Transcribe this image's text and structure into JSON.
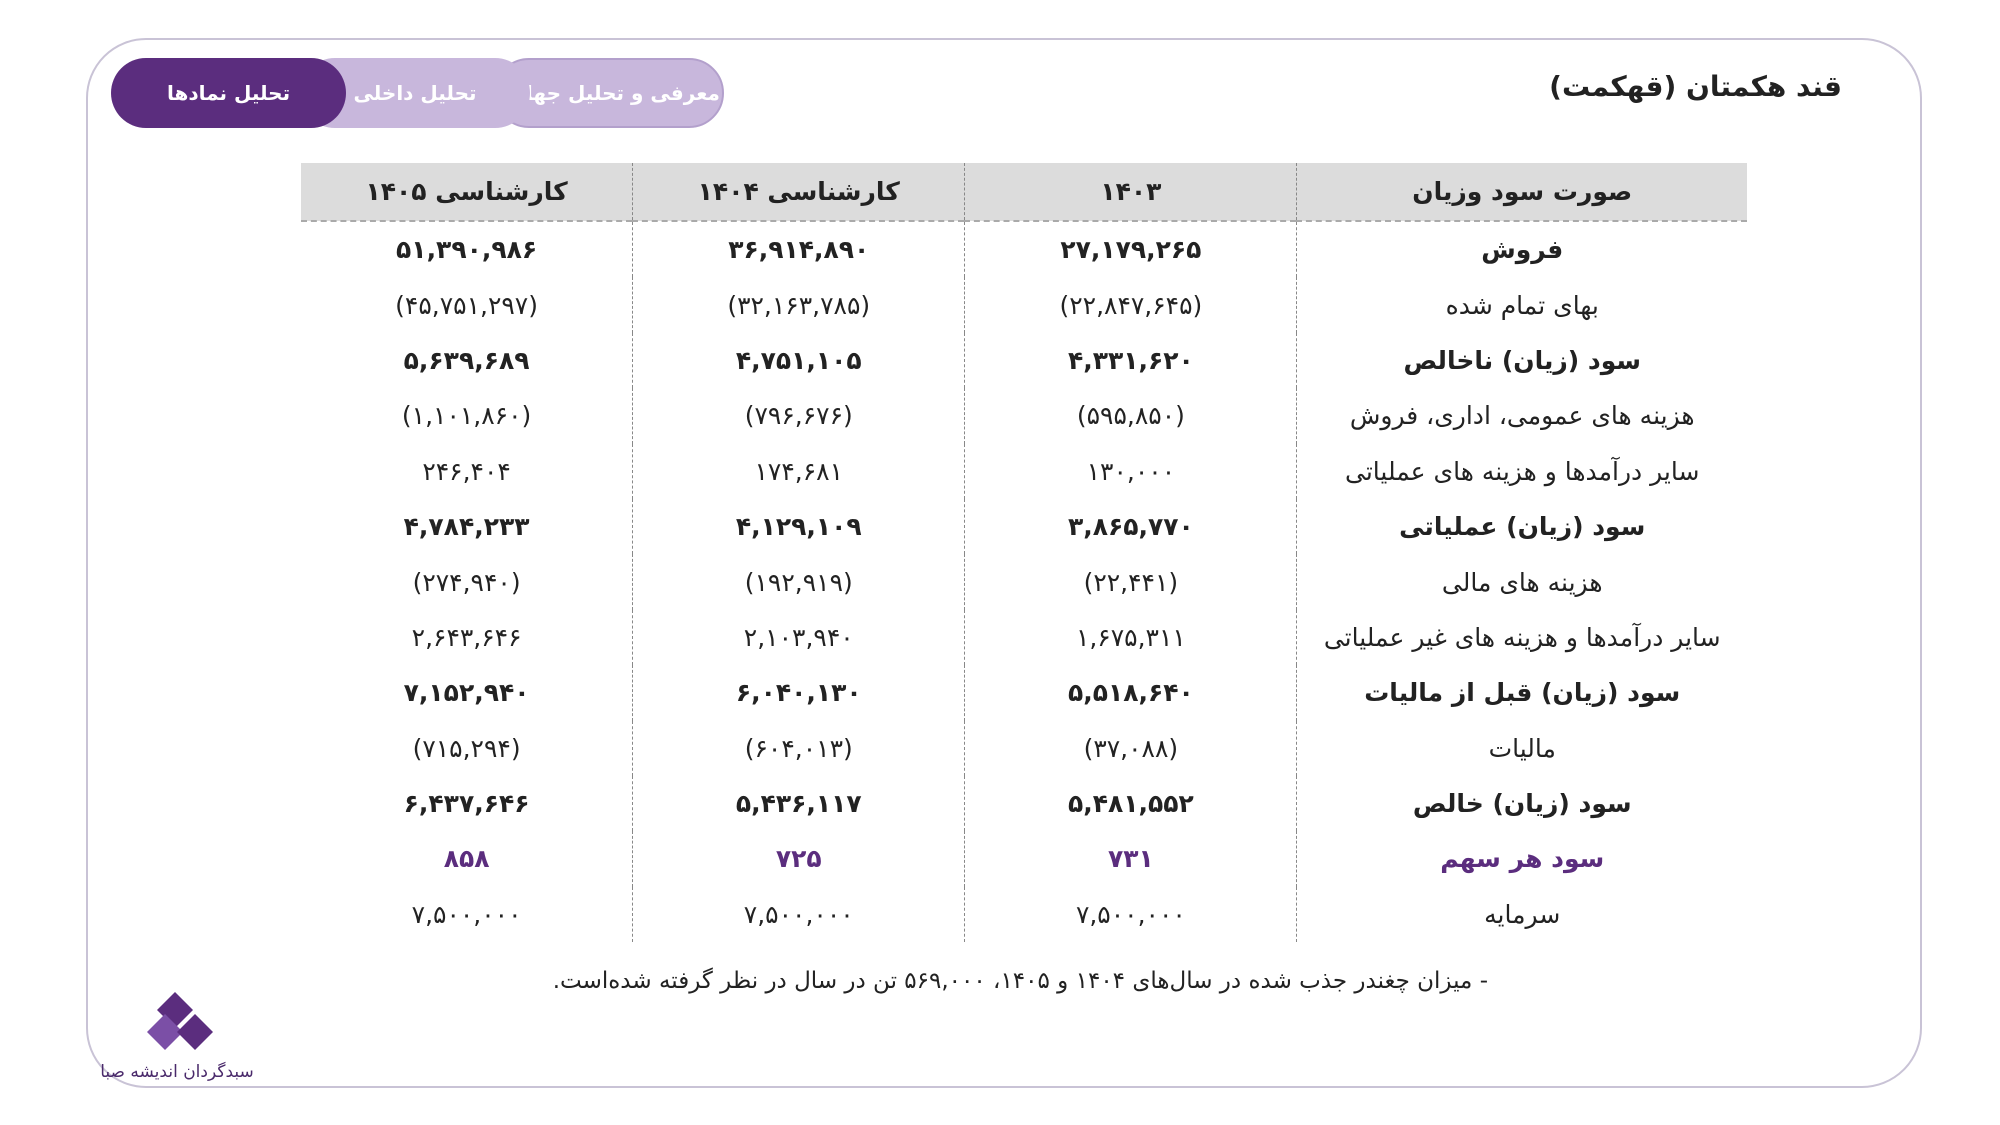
{
  "header": {
    "title": "قند هکمتان (قهکمت)",
    "tabs": [
      "تحلیل نمادها",
      "تحلیل داخلی",
      "معرفی و تحلیل جهانی"
    ]
  },
  "table": {
    "columns": [
      "صورت سود وزیان",
      "۱۴۰۳",
      "کارشناسی ۱۴۰۴",
      "کارشناسی ۱۴۰۵"
    ],
    "rows": [
      [
        "فروش",
        "۲۷,۱۷۹,۲۶۵",
        "۳۶,۹۱۴,۸۹۰",
        "۵۱,۳۹۰,۹۸۶"
      ],
      [
        "بهای تمام شده",
        "(۲۲,۸۴۷,۶۴۵)",
        "(۳۲,۱۶۳,۷۸۵)",
        "(۴۵,۷۵۱,۲۹۷)"
      ],
      [
        "سود (زیان) ناخالص",
        "۴,۳۳۱,۶۲۰",
        "۴,۷۵۱,۱۰۵",
        "۵,۶۳۹,۶۸۹"
      ],
      [
        "هزینه های عمومی، اداری، فروش",
        "(۵۹۵,۸۵۰)",
        "(۷۹۶,۶۷۶)",
        "(۱,۱۰۱,۸۶۰)"
      ],
      [
        "سایر درآمدها و هزینه های عملیاتی",
        "۱۳۰,۰۰۰",
        "۱۷۴,۶۸۱",
        "۲۴۶,۴۰۴"
      ],
      [
        "سود (زیان) عملیاتی",
        "۳,۸۶۵,۷۷۰",
        "۴,۱۲۹,۱۰۹",
        "۴,۷۸۴,۲۳۳"
      ],
      [
        "هزینه های مالی",
        "(۲۲,۴۴۱)",
        "(۱۹۲,۹۱۹)",
        "(۲۷۴,۹۴۰)"
      ],
      [
        "سایر درآمدها و هزینه های غیر عملیاتی",
        "۱,۶۷۵,۳۱۱",
        "۲,۱۰۳,۹۴۰",
        "۲,۶۴۳,۶۴۶"
      ],
      [
        "سود (زیان) قبل از مالیات",
        "۵,۵۱۸,۶۴۰",
        "۶,۰۴۰,۱۳۰",
        "۷,۱۵۲,۹۴۰"
      ],
      [
        "مالیات",
        "(۳۷,۰۸۸)",
        "(۶۰۴,۰۱۳)",
        "(۷۱۵,۲۹۴)"
      ],
      [
        "سود (زیان) خالص",
        "۵,۴۸۱,۵۵۲",
        "۵,۴۳۶,۱۱۷",
        "۶,۴۳۷,۶۴۶"
      ],
      [
        "سود هر سهم",
        "۷۳۱",
        "۷۲۵",
        "۸۵۸"
      ],
      [
        "سرمایه",
        "۷,۵۰۰,۰۰۰",
        "۷,۵۰۰,۰۰۰",
        "۷,۵۰۰,۰۰۰"
      ]
    ]
  },
  "footnote": "- میزان چغندر جذب شده در سال‌های ۱۴۰۴ و ۱۴۰۵، ۵۶۹,۰۰۰ تن در سال در نظر گرفته شده‌است.",
  "logo": {
    "text": "سبدگردان اندیشه صبا"
  }
}
